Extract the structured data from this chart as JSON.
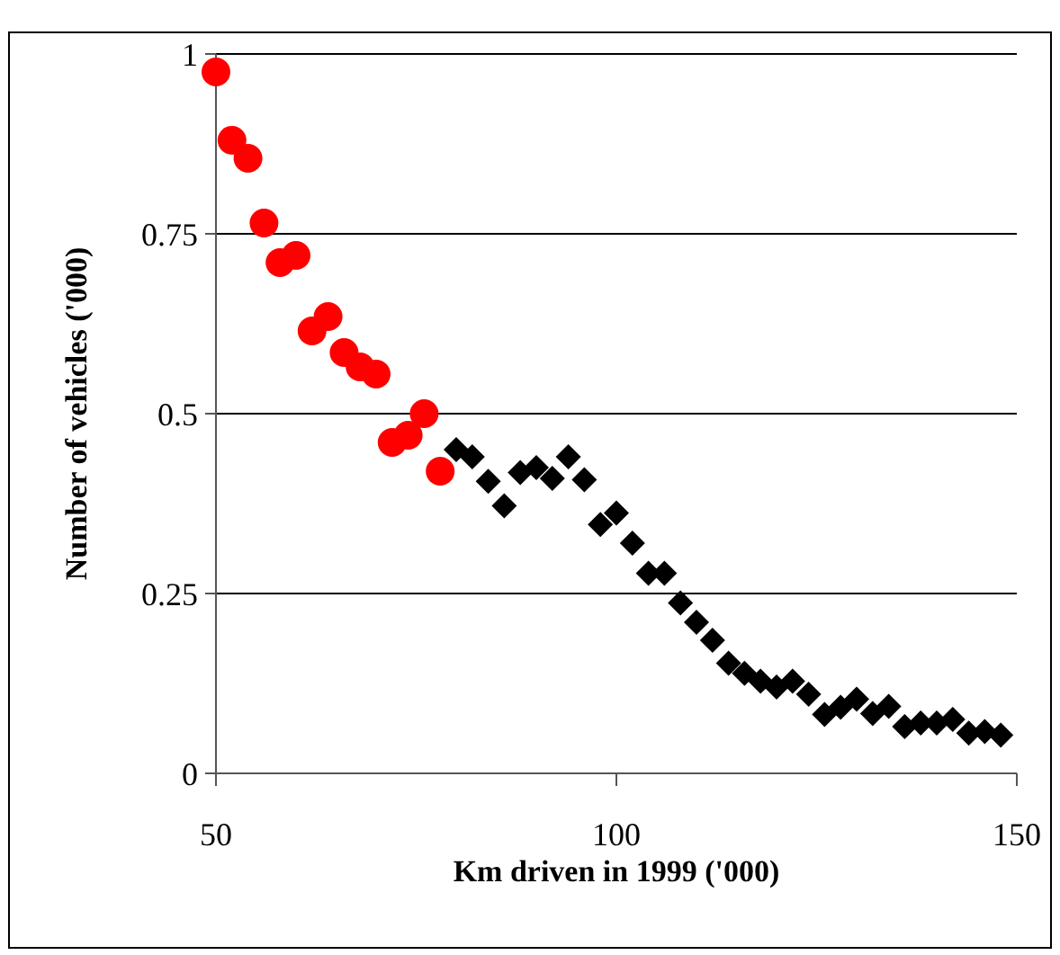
{
  "chart_data": {
    "type": "scatter",
    "xlabel": "Km driven in 1999 ('000)",
    "ylabel": "Number of vehicles ('000)",
    "xlim": [
      50,
      150
    ],
    "xticks": [
      50,
      100,
      150
    ],
    "ylim": [
      0,
      1
    ],
    "yticks": [
      0,
      0.25,
      0.5,
      0.75,
      1
    ],
    "grid": "y",
    "series": [
      {
        "color": "#ff0000",
        "marker": "circle",
        "x": [
          50,
          52,
          54,
          56,
          58,
          60,
          62,
          64,
          66,
          68,
          70,
          72,
          74,
          76,
          78
        ],
        "values": [
          0.975,
          0.88,
          0.855,
          0.765,
          0.71,
          0.72,
          0.615,
          0.635,
          0.585,
          0.565,
          0.555,
          0.46,
          0.47,
          0.5,
          0.42
        ]
      },
      {
        "color": "#000000",
        "marker": "diamond",
        "x": [
          80,
          82,
          84,
          86,
          88,
          90,
          92,
          94,
          96,
          98,
          100,
          102,
          104,
          106,
          108,
          110,
          112,
          114,
          116,
          118,
          120,
          122,
          124,
          126,
          128,
          130,
          132,
          134,
          136,
          138,
          140,
          142,
          144,
          146,
          148
        ],
        "values": [
          0.45,
          0.44,
          0.406,
          0.372,
          0.418,
          0.425,
          0.41,
          0.44,
          0.408,
          0.346,
          0.362,
          0.32,
          0.278,
          0.278,
          0.237,
          0.21,
          0.185,
          0.153,
          0.139,
          0.128,
          0.12,
          0.128,
          0.11,
          0.082,
          0.092,
          0.103,
          0.083,
          0.093,
          0.065,
          0.07,
          0.07,
          0.075,
          0.056,
          0.058,
          0.053
        ]
      }
    ]
  }
}
